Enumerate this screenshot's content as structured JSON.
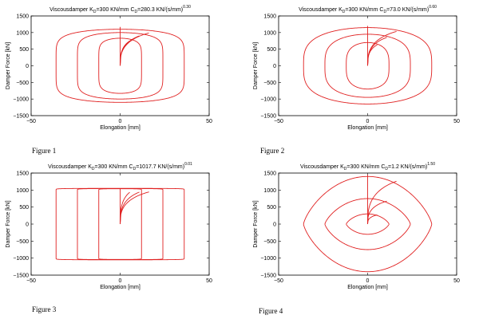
{
  "chart_data": [
    {
      "type": "line",
      "caption": "Figure 1",
      "title": "Viscousdamper K_D=300 KN/mm C_D=280.3 KN/(s/mm)^0.30",
      "title_parts": {
        "pre": "Viscousdamper K",
        "sub1": "D",
        "mid": "=300 KN/mm C",
        "sub2": "D",
        "post": "=280.3 KN/(s/mm)",
        "sup": "0.30"
      },
      "xlabel": "Elongation [mm]",
      "ylabel": "Damper Force [kN]",
      "xlim": [
        -50,
        50
      ],
      "ylim": [
        -1500,
        1500
      ],
      "xticks": [
        "−50",
        "0",
        "50"
      ],
      "yticks": [
        "1500",
        "1000",
        "500",
        "0",
        "−500",
        "−1000",
        "−1500"
      ],
      "alpha": 0.3,
      "loops": [
        {
          "amplitude_mm": 12,
          "force_kN": 830
        },
        {
          "amplitude_mm": 24,
          "force_kN": 1000
        },
        {
          "amplitude_mm": 36,
          "force_kN": 1100
        }
      ],
      "spike_kN": 1170,
      "line_color": "#e02020"
    },
    {
      "type": "line",
      "caption": "Figure 2",
      "title": "Viscousdamper K_D=300 KN/mm C_D=73.0 KN/(s/mm)^0.60",
      "title_parts": {
        "pre": "Viscousdamper K",
        "sub1": "D",
        "mid": "=300 KN/mm C",
        "sub2": "D",
        "post": "=73.0 KN/(s/mm)",
        "sup": "0.60"
      },
      "xlabel": "Elongation [mm]",
      "ylabel": "Damper Force [kN]",
      "xlim": [
        -50,
        50
      ],
      "ylim": [
        -1500,
        1500
      ],
      "xticks": [
        "−50",
        "0",
        "50"
      ],
      "yticks": [
        "1500",
        "1000",
        "500",
        "0",
        "−500",
        "−1000",
        "−1500"
      ],
      "alpha": 0.6,
      "loops": [
        {
          "amplitude_mm": 12,
          "force_kN": 700
        },
        {
          "amplitude_mm": 24,
          "force_kN": 950
        },
        {
          "amplitude_mm": 36,
          "force_kN": 1150
        }
      ],
      "spike_kN": 1200,
      "line_color": "#e02020"
    },
    {
      "type": "line",
      "caption": "Figure 3",
      "title": "Viscousdamper K_D=300 KN/mm C_D=1017.7 KN/(s/mm)^0.01",
      "title_parts": {
        "pre": "Viscousdamper K",
        "sub1": "D",
        "mid": "=300 KN/mm C",
        "sub2": "D",
        "post": "=1017.7 KN/(s/mm)",
        "sup": "0.01"
      },
      "xlabel": "Elongation [mm]",
      "ylabel": "Damper Force [kN]",
      "xlim": [
        -50,
        50
      ],
      "ylim": [
        -1500,
        1500
      ],
      "xticks": [
        "−50",
        "0",
        "50"
      ],
      "yticks": [
        "1500",
        "1000",
        "500",
        "0",
        "−500",
        "−1000",
        "−1500"
      ],
      "alpha": 0.01,
      "loops": [
        {
          "amplitude_mm": 12,
          "force_kN": 1040
        },
        {
          "amplitude_mm": 24,
          "force_kN": 1045
        },
        {
          "amplitude_mm": 36,
          "force_kN": 1050
        }
      ],
      "spike_kN": 1050,
      "line_color": "#e02020"
    },
    {
      "type": "line",
      "caption": "Figure 4",
      "title": "Viscousdamper K_D=300 KN/mm C_D=1.2 KN/(s/mm)^1.50",
      "title_parts": {
        "pre": "Viscousdamper K",
        "sub1": "D",
        "mid": "=300 KN/mm C",
        "sub2": "D",
        "post": "=1.2 KN/(s/mm)",
        "sup": "1.50"
      },
      "xlabel": "Elongation [mm]",
      "ylabel": "Damper Force [kN]",
      "xlim": [
        -50,
        50
      ],
      "ylim": [
        -1500,
        1500
      ],
      "xticks": [
        "−50",
        "0",
        "50"
      ],
      "yticks": [
        "1500",
        "1000",
        "500",
        "0",
        "−500",
        "−1000",
        "−1500"
      ],
      "alpha": 1.5,
      "loops": [
        {
          "amplitude_mm": 12,
          "force_kN": 300
        },
        {
          "amplitude_mm": 24,
          "force_kN": 750
        },
        {
          "amplitude_mm": 36,
          "force_kN": 1400
        }
      ],
      "spike_kN": 1450,
      "line_color": "#e02020"
    }
  ]
}
